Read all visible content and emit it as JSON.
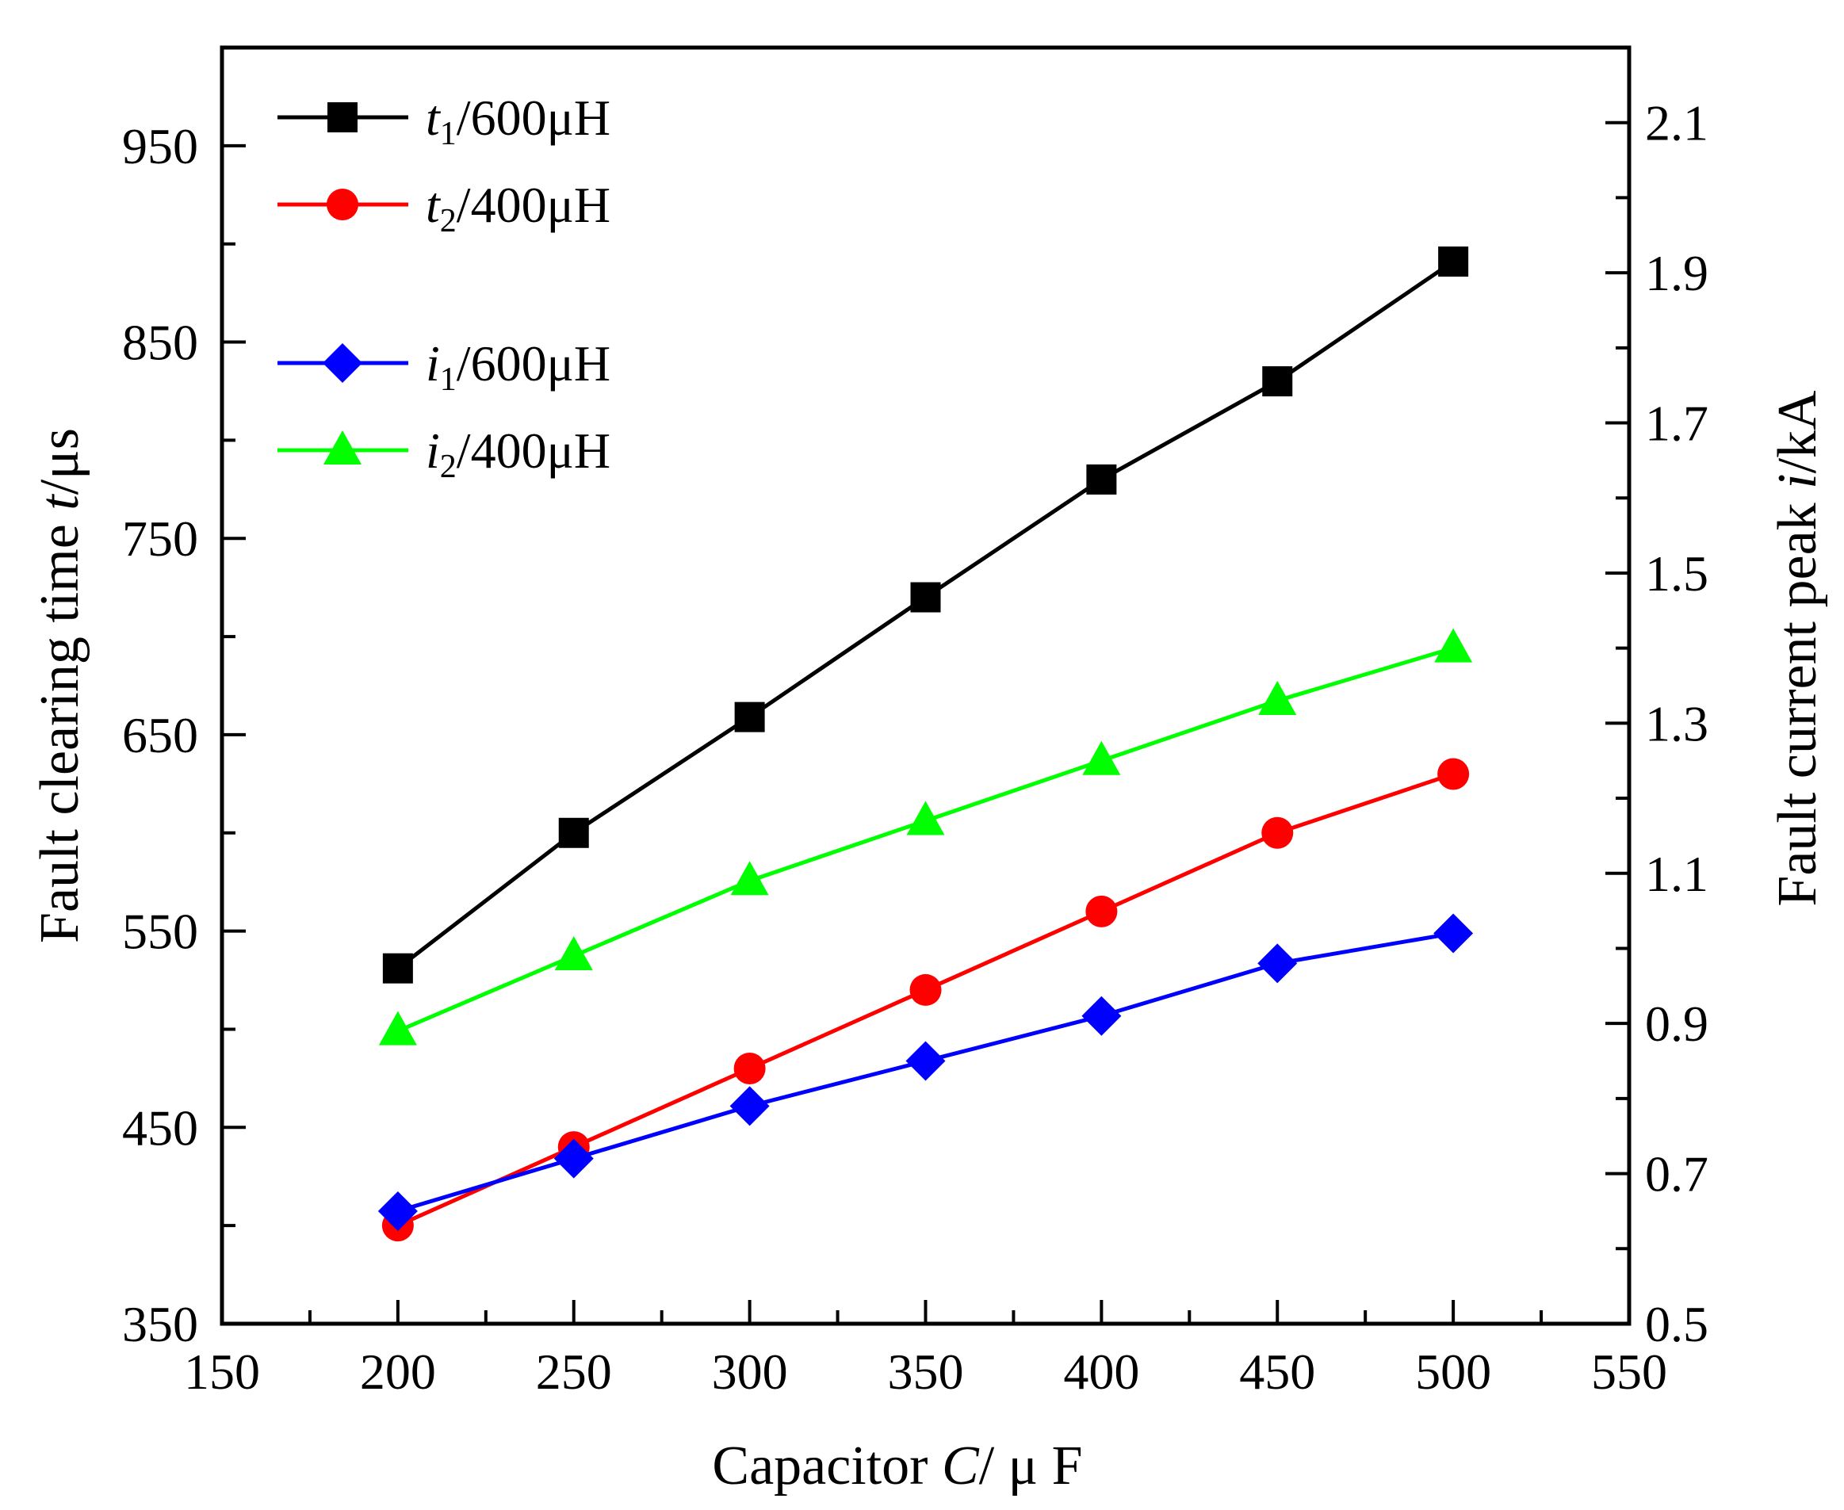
{
  "chart_data": {
    "type": "line",
    "xlabel": {
      "prefix": "Capacitor ",
      "var": "C",
      "suffix": "/ μ F"
    },
    "ylabel_left": {
      "prefix": "Fault clearing time ",
      "var": "t",
      "suffix": "/μs"
    },
    "ylabel_right": {
      "prefix": "Fault current peak ",
      "var": "i",
      "suffix": "/kA"
    },
    "x": [
      200,
      250,
      300,
      350,
      400,
      450,
      500
    ],
    "xlim": [
      150,
      550
    ],
    "xticks": [
      150,
      200,
      250,
      300,
      350,
      400,
      450,
      500,
      550
    ],
    "xtick_labels": [
      "150",
      "200",
      "250",
      "300",
      "350",
      "400",
      "450",
      "500",
      "550"
    ],
    "ylim_left": [
      350,
      1000
    ],
    "yticks_left": [
      350,
      450,
      550,
      650,
      750,
      850,
      950
    ],
    "ytick_labels_left": [
      "350",
      "450",
      "550",
      "650",
      "750",
      "850",
      "950"
    ],
    "ylim_right": [
      0.5,
      2.2
    ],
    "yticks_right": [
      0.5,
      0.7,
      0.9,
      1.1,
      1.3,
      1.5,
      1.7,
      1.9,
      2.1
    ],
    "ytick_labels_right": [
      "0.5",
      "0.7",
      "0.9",
      "1.1",
      "1.3",
      "1.5",
      "1.7",
      "1.9",
      "2.1"
    ],
    "legend_position": "top-left",
    "series": [
      {
        "var": "t",
        "sub": "1",
        "label": "/600μH",
        "axis": "left",
        "color": "#000000",
        "marker": "square",
        "values": [
          531,
          600,
          659,
          720,
          780,
          830,
          891
        ]
      },
      {
        "var": "t",
        "sub": "2",
        "label": "/400μH",
        "axis": "left",
        "color": "#ff0000",
        "marker": "circle",
        "values": [
          400,
          440,
          480,
          520,
          560,
          600,
          630
        ]
      },
      {
        "var": "i",
        "sub": "1",
        "label": "/600μH",
        "axis": "right",
        "color": "#0000ff",
        "marker": "diamond",
        "values": [
          0.65,
          0.72,
          0.79,
          0.85,
          0.91,
          0.98,
          1.02
        ]
      },
      {
        "var": "i",
        "sub": "2",
        "label": "/400μH",
        "axis": "right",
        "color": "#00ff00",
        "marker": "triangle",
        "values": [
          0.89,
          0.99,
          1.09,
          1.17,
          1.25,
          1.33,
          1.4
        ]
      }
    ]
  }
}
